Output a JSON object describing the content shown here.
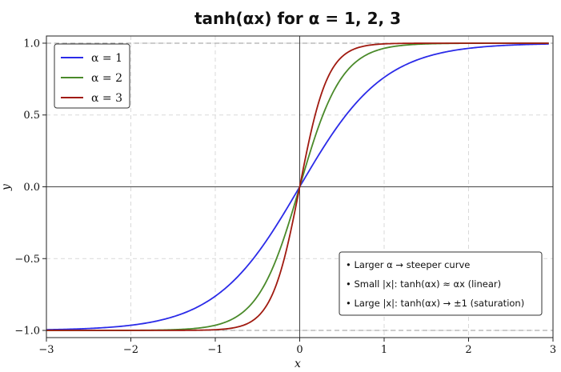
{
  "chart_data": {
    "type": "line",
    "title": "tanh(αx) for α = 1, 2, 3",
    "xlabel": "x",
    "ylabel": "y",
    "xlim": [
      -3,
      3
    ],
    "ylim": [
      -1.05,
      1.05
    ],
    "xticks": [
      -3,
      -2,
      -1,
      0,
      1,
      2,
      3
    ],
    "xtick_labels": [
      "−3",
      "−2",
      "−1",
      "0",
      "1",
      "2",
      "3"
    ],
    "yticks": [
      -1.0,
      -0.5,
      0.0,
      0.5,
      1.0
    ],
    "ytick_labels": [
      "−1.0",
      "−0.5",
      "0.0",
      "0.5",
      "1.0"
    ],
    "grid": true,
    "reference_lines": {
      "y": [
        -1,
        1
      ],
      "style": "dashed"
    },
    "legend_placement": "top-left",
    "series": [
      {
        "name": "α = 1",
        "alpha": 1,
        "color": "#2b2be8",
        "x_range": [
          -3,
          2.95
        ],
        "function": "tanh(1·x)"
      },
      {
        "name": "α = 2",
        "alpha": 2,
        "color": "#4a8a2a",
        "x_range": [
          -3,
          2.95
        ],
        "function": "tanh(2·x)"
      },
      {
        "name": "α = 3",
        "alpha": 3,
        "color": "#a01a10",
        "x_range": [
          -3,
          2.95
        ],
        "function": "tanh(3·x)"
      }
    ],
    "annotation": {
      "placement": "bottom-right",
      "lines": [
        "• Larger α → steeper curve",
        "• Small |x|: tanh(αx) ≈ αx (linear)",
        "• Large |x|: tanh(αx) → ±1 (saturation)"
      ]
    }
  }
}
